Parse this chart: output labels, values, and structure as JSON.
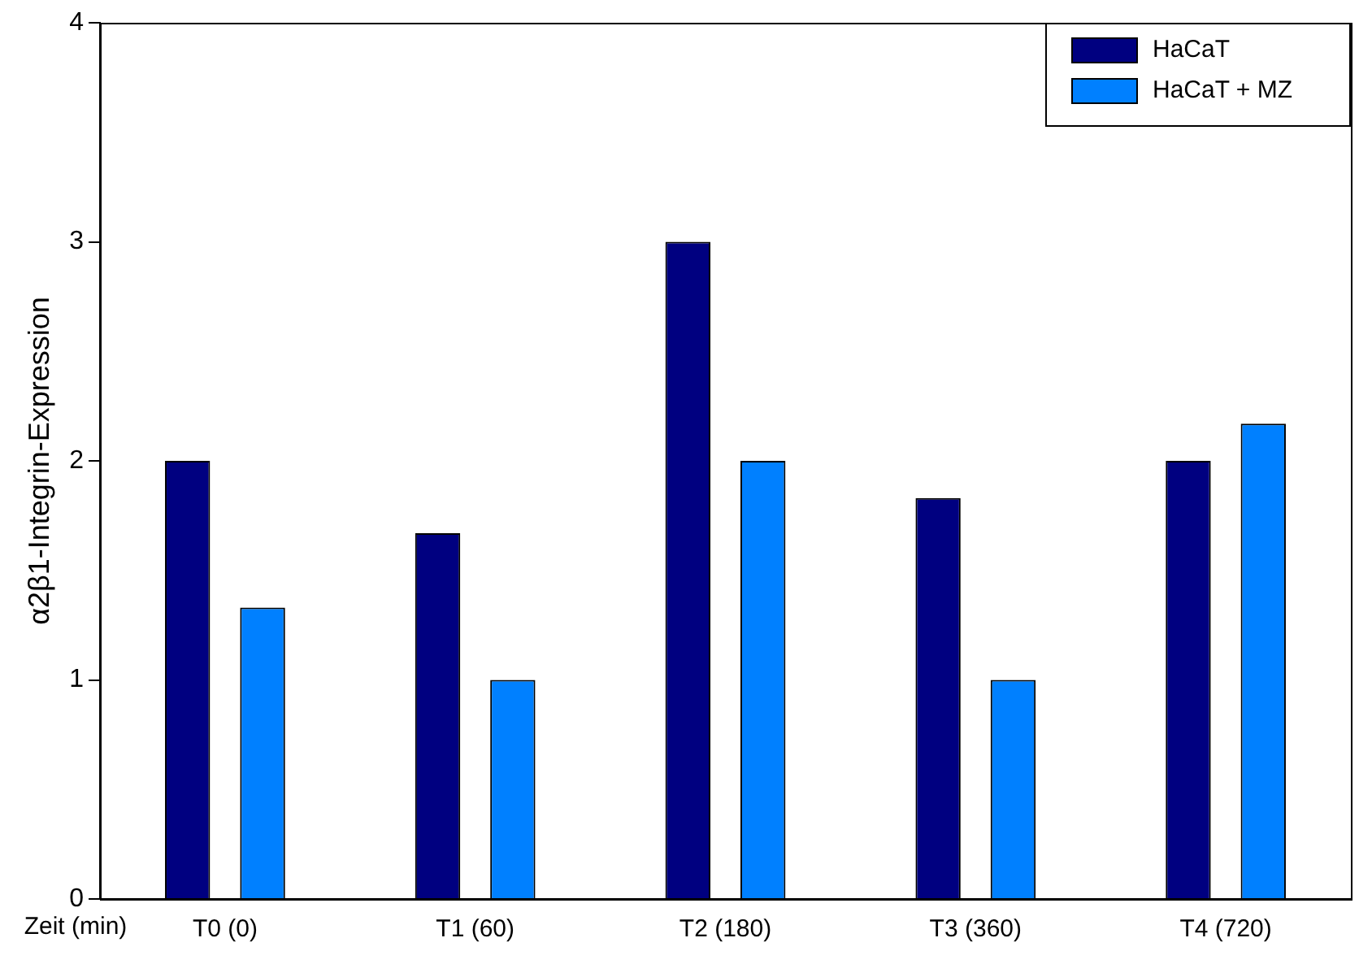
{
  "chart_data": {
    "type": "bar",
    "xlabel": "Zeit (min)",
    "ylabel": "α2β1-Integrin-Expression",
    "categories": [
      "T0 (0)",
      "T1 (60)",
      "T2 (180)",
      "T3 (360)",
      "T4 (720)"
    ],
    "series": [
      {
        "name": "HaCaT",
        "color": "#000080",
        "values": [
          2,
          1.67,
          3,
          1.83,
          2
        ]
      },
      {
        "name": "HaCaT + MZ",
        "color": "#0080ff",
        "values": [
          1.33,
          1,
          2,
          1,
          2.17
        ]
      }
    ],
    "ylim": [
      0,
      4
    ],
    "yticks": [
      0,
      1,
      2,
      3,
      4
    ],
    "grid": false,
    "legend": "top right"
  }
}
